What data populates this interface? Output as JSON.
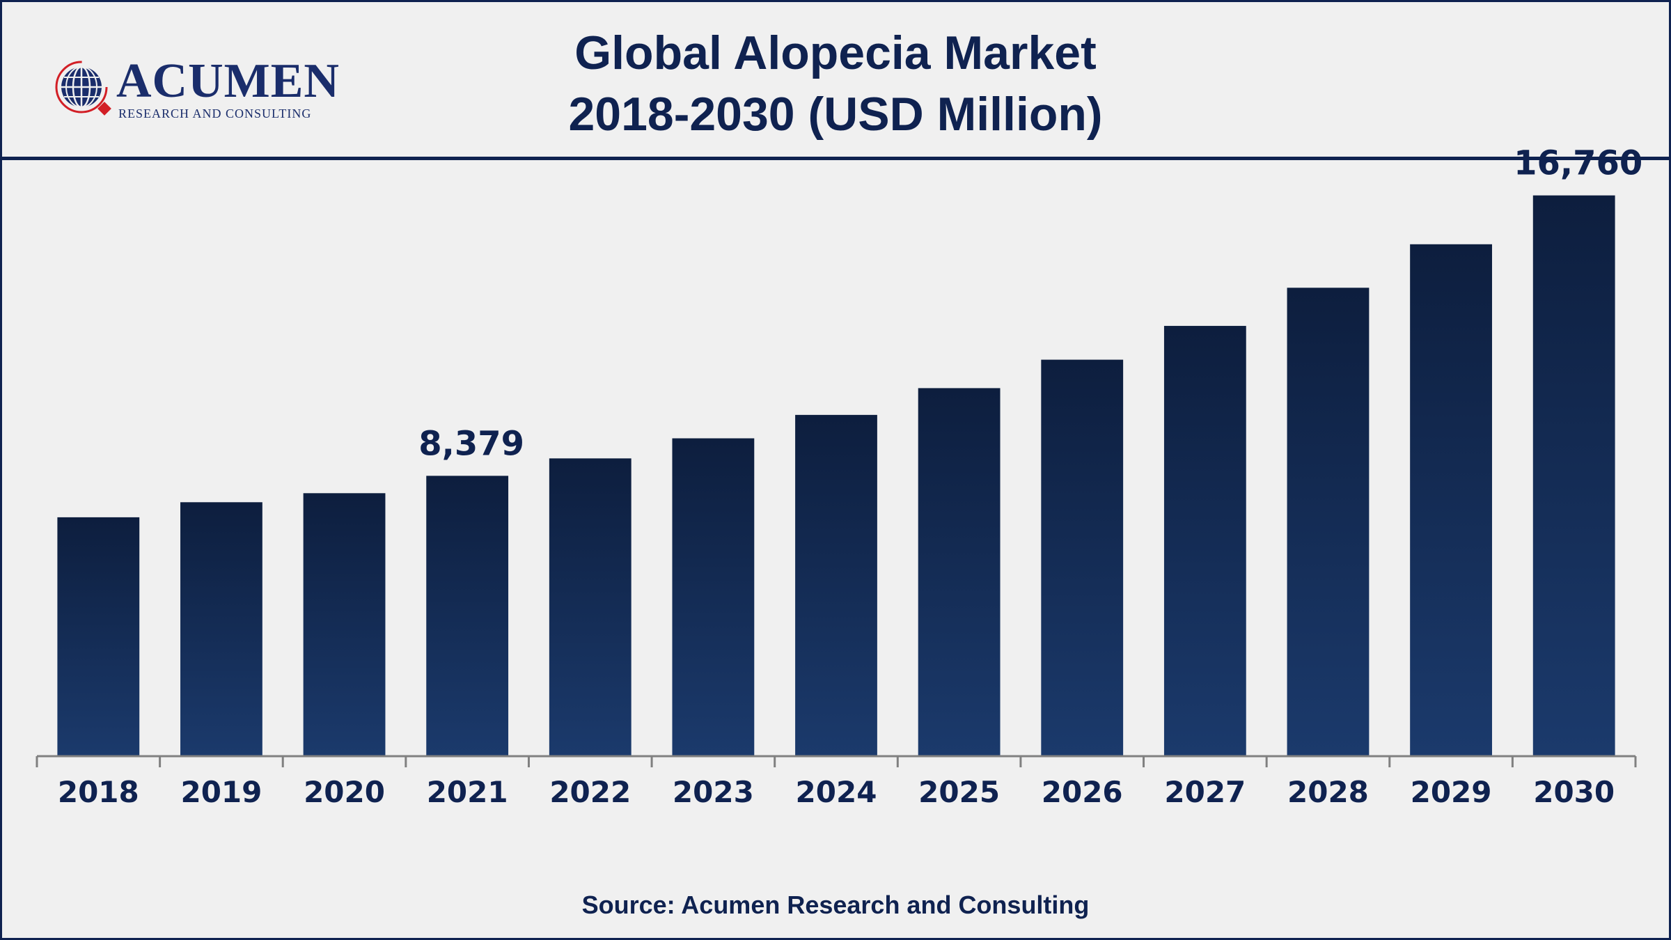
{
  "header": {
    "title_line1": "Global Alopecia Market",
    "title_line2": "2018-2030 (USD Million)",
    "logo": {
      "brand": "ACUMEN",
      "tagline": "RESEARCH AND CONSULTING",
      "icon": "globe-icon"
    }
  },
  "footer": {
    "source": "Source: Acumen Research and Consulting"
  },
  "colors": {
    "title": "#0f2250",
    "bar_top": "#0d1e3e",
    "bar_bottom": "#1b3a6c",
    "axis": "#808080",
    "logo_red": "#d21f26"
  },
  "chart_data": {
    "type": "bar",
    "title": "Global Alopecia Market 2018-2030 (USD Million)",
    "categories": [
      "2018",
      "2019",
      "2020",
      "2021",
      "2022",
      "2023",
      "2024",
      "2025",
      "2026",
      "2027",
      "2028",
      "2029",
      "2030"
    ],
    "values": [
      7140,
      7590,
      7860,
      8379,
      8900,
      9500,
      10200,
      11000,
      11850,
      12860,
      14000,
      15300,
      16760
    ],
    "data_labels": [
      {
        "category": "2021",
        "text": "8,379"
      },
      {
        "category": "2030",
        "text": "16,760"
      }
    ],
    "xlabel": "",
    "ylabel": "",
    "ylim": [
      0,
      19000
    ],
    "grid": false,
    "legend": "none"
  }
}
